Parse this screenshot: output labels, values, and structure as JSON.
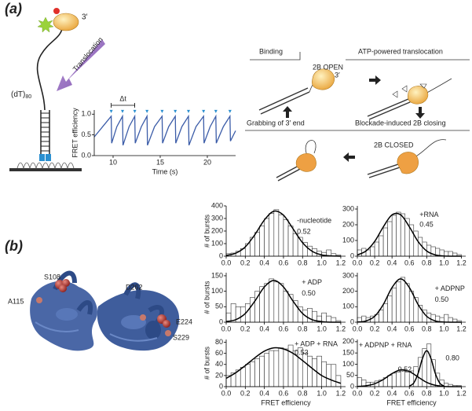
{
  "panels": [
    "(a)",
    "(b)"
  ],
  "diagram": {
    "prime": "3′",
    "dna_label": "(dT)",
    "dna_subscript": "80",
    "arrow_label": "Translocation",
    "binding": "Binding",
    "open": "2B OPEN",
    "open_prime": "3′",
    "translocation": "ATP-powered translocation",
    "closing": "Blockade-induced 2B closing",
    "closed": "2B CLOSED",
    "grabbing": "Grabbing of 3′ end"
  },
  "structure": {
    "residues": [
      "S108",
      "A115",
      "D262",
      "E224",
      "S229"
    ]
  },
  "chart_data": [
    {
      "type": "line",
      "x_label": "Time (s)",
      "y_label": "FRET efficiency",
      "color": "#3b5ca8",
      "annotations": [
        "Δt"
      ],
      "x": [
        8.0,
        8.9,
        9.8,
        9.85,
        10.4,
        11.0,
        11.05,
        11.7,
        12.3,
        12.35,
        13.0,
        13.6,
        13.65,
        14.4,
        15.2,
        15.25,
        15.9,
        16.6,
        16.65,
        17.3,
        18.0,
        18.05,
        18.8,
        19.6,
        19.65,
        20.3,
        20.9,
        20.95,
        21.7,
        22.4,
        22.45,
        23.0
      ],
      "values": [
        0.45,
        0.7,
        0.95,
        0.3,
        0.7,
        0.95,
        0.25,
        0.7,
        0.95,
        0.3,
        0.7,
        0.95,
        0.25,
        0.7,
        0.95,
        0.3,
        0.7,
        0.95,
        0.3,
        0.7,
        0.95,
        0.25,
        0.7,
        0.95,
        0.3,
        0.7,
        0.95,
        0.3,
        0.7,
        0.95,
        0.35,
        0.6
      ],
      "xlim": [
        8,
        23
      ],
      "ylim": [
        0,
        1.1
      ],
      "xticks": [
        10,
        15,
        20
      ],
      "yticks": [
        {
          "value": 0,
          "label": "0.0"
        },
        0.5,
        {
          "value": 1,
          "label": "1.0"
        }
      ]
    },
    {
      "type": "histogram",
      "y_label": "# of bursts",
      "color": "#ffffff",
      "annotations": [
        "-nucleotide",
        "0.52"
      ],
      "bins": [
        0,
        0.05,
        0.1,
        0.15,
        0.2,
        0.25,
        0.3,
        0.35,
        0.4,
        0.45,
        0.5,
        0.55,
        0.6,
        0.65,
        0.7,
        0.75,
        0.8,
        0.85,
        0.9,
        0.95,
        1.0,
        1.05,
        1.1,
        1.15,
        1.2
      ],
      "values": [
        20,
        25,
        40,
        60,
        100,
        150,
        190,
        240,
        300,
        340,
        370,
        330,
        290,
        240,
        180,
        150,
        110,
        80,
        60,
        40,
        30,
        50,
        20,
        10
      ],
      "fits": [
        {
          "color": "#000000",
          "x": [
            0,
            0.1,
            0.2,
            0.3,
            0.4,
            0.5,
            0.6,
            0.7,
            0.8,
            0.9,
            1.0,
            1.1,
            1.2
          ],
          "values": [
            6,
            24,
            74,
            171,
            288,
            358,
            326,
            218,
            107,
            39,
            10,
            2,
            0
          ]
        }
      ],
      "xlim": [
        0,
        1.25
      ],
      "ylim": [
        0,
        400
      ],
      "yticks": [
        0,
        100,
        200,
        300,
        400
      ],
      "xticks": [
        {
          "value": 0,
          "label": "0.0"
        },
        0.2,
        0.4,
        0.6,
        0.8,
        {
          "value": 1,
          "label": "1.0"
        },
        1.2
      ]
    },
    {
      "type": "histogram",
      "color": "#ffffff",
      "annotations": [
        "+RNA",
        "0.45"
      ],
      "bins": [
        0,
        0.05,
        0.1,
        0.15,
        0.2,
        0.25,
        0.3,
        0.35,
        0.4,
        0.45,
        0.5,
        0.55,
        0.6,
        0.65,
        0.7,
        0.75,
        0.8,
        0.85,
        0.9,
        0.95,
        1.0,
        1.05,
        1.1,
        1.15,
        1.2
      ],
      "values": [
        40,
        50,
        40,
        60,
        90,
        130,
        180,
        220,
        260,
        280,
        270,
        240,
        200,
        160,
        120,
        90,
        70,
        60,
        50,
        40,
        30,
        30,
        20,
        10
      ],
      "fits": [
        {
          "color": "#000000",
          "x": [
            0,
            0.1,
            0.2,
            0.3,
            0.4,
            0.5,
            0.6,
            0.7,
            0.8,
            0.9,
            1.0,
            1.1,
            1.2
          ],
          "values": [
            8,
            33,
            94,
            187,
            263,
            263,
            187,
            94,
            33,
            8,
            1,
            0,
            0
          ]
        }
      ],
      "xlim": [
        0,
        1.25
      ],
      "ylim": [
        0,
        320
      ],
      "yticks": [
        0,
        100,
        200,
        300
      ],
      "xticks": [
        {
          "value": 0,
          "label": "0.0"
        },
        0.2,
        0.4,
        0.6,
        0.8,
        {
          "value": 1,
          "label": "1.0"
        },
        1.2
      ]
    },
    {
      "type": "histogram",
      "y_label": "# of bursts",
      "color": "#ffffff",
      "annotations": [
        "+ ADP",
        "0.50"
      ],
      "bins": [
        0,
        0.05,
        0.1,
        0.15,
        0.2,
        0.25,
        0.3,
        0.35,
        0.4,
        0.45,
        0.5,
        0.55,
        0.6,
        0.65,
        0.7,
        0.75,
        0.8,
        0.85,
        0.9,
        0.95,
        1.0,
        1.05,
        1.1,
        1.15,
        1.2
      ],
      "values": [
        30,
        60,
        50,
        50,
        60,
        80,
        100,
        115,
        125,
        140,
        130,
        125,
        100,
        90,
        70,
        50,
        40,
        45,
        35,
        20,
        30,
        20,
        15,
        5
      ],
      "fits": [
        {
          "color": "#000000",
          "x": [
            0,
            0.1,
            0.2,
            0.3,
            0.4,
            0.5,
            0.6,
            0.7,
            0.8,
            0.9,
            1.0,
            1.1,
            1.2
          ],
          "values": [
            2,
            8,
            28,
            68,
            114,
            135,
            114,
            68,
            28,
            8,
            2,
            0,
            0
          ]
        }
      ],
      "xlim": [
        0,
        1.25
      ],
      "ylim": [
        0,
        160
      ],
      "yticks": [
        0,
        50,
        100,
        150
      ],
      "xticks": [
        {
          "value": 0,
          "label": "0.0"
        },
        0.2,
        0.4,
        0.6,
        0.8,
        {
          "value": 1,
          "label": "1.0"
        },
        1.2
      ]
    },
    {
      "type": "histogram",
      "color": "#ffffff",
      "annotations": [
        "+ ADPNP",
        "0.50"
      ],
      "bins": [
        0,
        0.05,
        0.1,
        0.15,
        0.2,
        0.25,
        0.3,
        0.35,
        0.4,
        0.45,
        0.5,
        0.55,
        0.6,
        0.65,
        0.7,
        0.75,
        0.8,
        0.85,
        0.9,
        0.95,
        1.0,
        1.05,
        1.1,
        1.15,
        1.2
      ],
      "values": [
        30,
        40,
        30,
        40,
        50,
        80,
        120,
        170,
        220,
        260,
        290,
        250,
        200,
        160,
        110,
        80,
        60,
        50,
        40,
        30,
        50,
        30,
        20,
        10
      ],
      "fits": [
        {
          "color": "#000000",
          "x": [
            0,
            0.1,
            0.2,
            0.3,
            0.4,
            0.5,
            0.6,
            0.7,
            0.8,
            0.9,
            1.0,
            1.1,
            1.2
          ],
          "values": [
            1,
            8,
            38,
            115,
            224,
            280,
            224,
            115,
            38,
            8,
            1,
            0,
            0
          ]
        }
      ],
      "xlim": [
        0,
        1.25
      ],
      "ylim": [
        0,
        320
      ],
      "yticks": [
        0,
        100,
        200,
        300
      ],
      "xticks": [
        {
          "value": 0,
          "label": "0.0"
        },
        0.2,
        0.4,
        0.6,
        0.8,
        {
          "value": 1,
          "label": "1.0"
        },
        1.2
      ]
    },
    {
      "type": "histogram",
      "y_label": "# of bursts",
      "x_label": "FRET efficiency",
      "color": "#ffffff",
      "annotations": [
        "+ ADP + RNA",
        "0.53"
      ],
      "bins": [
        0,
        0.05,
        0.1,
        0.15,
        0.2,
        0.25,
        0.3,
        0.35,
        0.4,
        0.45,
        0.5,
        0.55,
        0.6,
        0.65,
        0.7,
        0.75,
        0.8,
        0.85,
        0.9,
        0.95,
        1.0,
        1.05,
        1.1,
        1.15,
        1.2
      ],
      "values": [
        20,
        25,
        30,
        35,
        40,
        45,
        50,
        55,
        60,
        65,
        65,
        70,
        68,
        75,
        65,
        70,
        60,
        55,
        50,
        55,
        45,
        40,
        40,
        20
      ],
      "fits": [
        {
          "color": "#000000",
          "x": [
            0,
            0.1,
            0.2,
            0.3,
            0.4,
            0.5,
            0.6,
            0.7,
            0.8,
            0.9,
            1.0,
            1.1,
            1.2
          ],
          "values": [
            15,
            25,
            38,
            52,
            64,
            70,
            68,
            60,
            47,
            33,
            20,
            12,
            6
          ]
        }
      ],
      "xlim": [
        0,
        1.25
      ],
      "ylim": [
        0,
        85
      ],
      "yticks": [
        0,
        20,
        40,
        60,
        80
      ],
      "xticks": [
        {
          "value": 0,
          "label": "0.0"
        },
        0.2,
        0.4,
        0.6,
        0.8,
        {
          "value": 1,
          "label": "1.0"
        },
        1.2
      ]
    },
    {
      "type": "histogram",
      "x_label": "FRET efficiency",
      "color": "#ffffff",
      "annotations": [
        "+ ADPNP + RNA",
        "0.52",
        "0.80"
      ],
      "bins": [
        0,
        0.05,
        0.1,
        0.15,
        0.2,
        0.25,
        0.3,
        0.35,
        0.4,
        0.45,
        0.5,
        0.55,
        0.6,
        0.65,
        0.7,
        0.75,
        0.8,
        0.85,
        0.9,
        0.95,
        1.0,
        1.05,
        1.1,
        1.15,
        1.2
      ],
      "values": [
        40,
        30,
        20,
        20,
        25,
        30,
        40,
        50,
        60,
        65,
        70,
        65,
        70,
        90,
        130,
        170,
        190,
        120,
        60,
        30,
        15,
        10,
        5,
        5
      ],
      "fits": [
        {
          "color": "#000000",
          "x": [
            0,
            0.1,
            0.2,
            0.3,
            0.4,
            0.5,
            0.6,
            0.7,
            0.8,
            0.9,
            1.0,
            1.1,
            1.2
          ],
          "values": [
            1,
            4,
            13,
            32,
            58,
            75,
            67,
            43,
            19,
            6,
            1,
            0,
            0
          ]
        },
        {
          "color": "#000000",
          "x": [
            0.6,
            0.65,
            0.7,
            0.75,
            0.8,
            0.85,
            0.9,
            0.95,
            1.0
          ],
          "values": [
            3,
            16,
            58,
            124,
            160,
            124,
            58,
            16,
            3
          ]
        }
      ],
      "xlim": [
        0,
        1.25
      ],
      "ylim": [
        0,
        210
      ],
      "yticks": [
        0,
        50,
        100,
        150,
        200
      ],
      "xticks": [
        {
          "value": 0,
          "label": "0.0"
        },
        0.2,
        0.4,
        0.6,
        0.8,
        {
          "value": 1,
          "label": "1.0"
        },
        1.2
      ]
    }
  ]
}
